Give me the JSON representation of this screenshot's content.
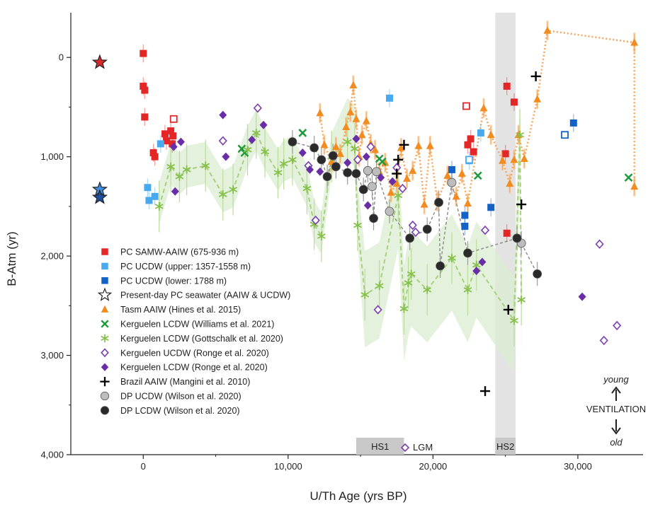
{
  "chart_data": {
    "type": "scatter",
    "xlabel": "U/Th Age (yrs BP)",
    "ylabel": "B-Atm (yr)",
    "xlim": [
      -5000,
      34500
    ],
    "ylim": [
      4000,
      -450
    ],
    "y_inverted": true,
    "x_ticks": [
      0,
      10000,
      20000,
      30000
    ],
    "x_tick_labels": [
      "0",
      "10,000",
      "20,000",
      "30,000"
    ],
    "y_ticks": [
      0,
      1000,
      2000,
      3000,
      4000
    ],
    "y_tick_labels": [
      "0",
      "1,000",
      "2,000",
      "3,000",
      "4,000"
    ],
    "grid": false,
    "legend_position": "lower-left",
    "shaded_bands": [
      {
        "label": "HS1",
        "x": [
          14700,
          18000
        ]
      },
      {
        "label": "HS2",
        "x": [
          24300,
          25700
        ]
      }
    ],
    "lgm_label": "LGM",
    "annotations": {
      "young": "young",
      "ventilation": "VENTILATION",
      "old": "old"
    },
    "series": [
      {
        "name": "PC SAMW-AAIW (675-936 m)",
        "marker": "square",
        "color": "#e32727",
        "points": [
          [
            0,
            -40
          ],
          [
            0,
            290
          ],
          [
            100,
            330
          ],
          [
            100,
            600
          ],
          [
            700,
            960
          ],
          [
            800,
            1000
          ],
          [
            1500,
            770
          ],
          [
            1600,
            840
          ],
          [
            1900,
            740
          ],
          [
            2000,
            870
          ],
          [
            2050,
            790
          ],
          [
            25000,
            970
          ],
          [
            25100,
            1770
          ],
          [
            25100,
            290
          ],
          [
            25600,
            450
          ],
          [
            22400,
            880
          ],
          [
            22600,
            820
          ],
          [
            22800,
            950
          ]
        ],
        "open_points": [
          [
            2100,
            620
          ],
          [
            22300,
            490
          ]
        ]
      },
      {
        "name": "PC UCDW (upper: 1357-1558 m)",
        "marker": "square",
        "color": "#49a9ee",
        "points": [
          [
            300,
            1310
          ],
          [
            400,
            1440
          ],
          [
            800,
            1400
          ],
          [
            1200,
            870
          ],
          [
            17000,
            410
          ],
          [
            22500,
            1040
          ],
          [
            23300,
            760
          ]
        ],
        "open_points": [
          [
            22500,
            1030
          ]
        ]
      },
      {
        "name": "PC UCDW (lower: 1788 m)",
        "marker": "square",
        "color": "#1562c7",
        "points": [
          [
            21300,
            1130
          ],
          [
            22200,
            1590
          ],
          [
            22200,
            1700
          ],
          [
            24000,
            1510
          ],
          [
            29700,
            660
          ]
        ],
        "open_points": [
          [
            29100,
            780
          ]
        ]
      },
      {
        "name": "Present-day PC seawater (AAIW & UCDW)",
        "marker": "star",
        "color": "#ffffff",
        "points": [
          [
            -3000,
            50
          ],
          [
            -3000,
            1330
          ],
          [
            -3000,
            1410
          ]
        ],
        "fills": [
          "#d62a2a",
          "#3f8de0",
          "#1c4f9c"
        ]
      },
      {
        "name": "Tasm AAIW (Hines et al. 2015)",
        "marker": "triangle",
        "color": "#f38c20",
        "points": [
          [
            12200,
            560
          ],
          [
            12500,
            880
          ],
          [
            13000,
            1050
          ],
          [
            13300,
            900
          ],
          [
            13600,
            970
          ],
          [
            14000,
            700
          ],
          [
            14300,
            550
          ],
          [
            14500,
            280
          ],
          [
            14700,
            620
          ],
          [
            14900,
            1000
          ],
          [
            15100,
            780
          ],
          [
            15400,
            640
          ],
          [
            15700,
            870
          ],
          [
            16000,
            930
          ],
          [
            16300,
            1150
          ],
          [
            16700,
            1060
          ],
          [
            17100,
            1360
          ],
          [
            17500,
            1270
          ],
          [
            17800,
            910
          ],
          [
            18200,
            1220
          ],
          [
            18600,
            1140
          ],
          [
            19000,
            890
          ],
          [
            19400,
            1480
          ],
          [
            19800,
            890
          ],
          [
            20300,
            1450
          ],
          [
            21000,
            1190
          ],
          [
            21600,
            1400
          ],
          [
            22000,
            1170
          ],
          [
            22400,
            1470
          ],
          [
            23500,
            510
          ],
          [
            24000,
            780
          ],
          [
            24800,
            1040
          ],
          [
            25300,
            1270
          ],
          [
            25600,
            1030
          ],
          [
            25900,
            780
          ],
          [
            26300,
            1020
          ],
          [
            27200,
            420
          ],
          [
            27900,
            -270
          ],
          [
            33900,
            -150
          ],
          [
            33900,
            1300
          ]
        ]
      },
      {
        "name": "Kerguelen LCDW (Williams et al. 2021)",
        "marker": "x",
        "color": "#1e9a3e",
        "points": [
          [
            6800,
            920
          ],
          [
            7000,
            960
          ],
          [
            11000,
            760
          ],
          [
            16300,
            1020
          ],
          [
            16500,
            1050
          ],
          [
            23100,
            1190
          ],
          [
            33500,
            1210
          ]
        ]
      },
      {
        "name": "Kerguelen LCDW (Gottschalk et al. 2020)",
        "marker": "asterisk",
        "color": "#86c04b",
        "points": [
          [
            1100,
            1500
          ],
          [
            1900,
            1100
          ],
          [
            2500,
            1200
          ],
          [
            3000,
            1130
          ],
          [
            4300,
            1090
          ],
          [
            5500,
            1380
          ],
          [
            6200,
            1330
          ],
          [
            7200,
            930
          ],
          [
            7800,
            760
          ],
          [
            8400,
            950
          ],
          [
            9300,
            1160
          ],
          [
            9700,
            1070
          ],
          [
            10300,
            1030
          ],
          [
            11300,
            1320
          ],
          [
            11800,
            1680
          ],
          [
            12300,
            1800
          ],
          [
            13000,
            1000
          ],
          [
            14100,
            850
          ],
          [
            14600,
            920
          ],
          [
            14800,
            1690
          ],
          [
            15300,
            2390
          ],
          [
            16300,
            2300
          ],
          [
            17600,
            1390
          ],
          [
            18000,
            2530
          ],
          [
            18300,
            2270
          ],
          [
            18500,
            2180
          ],
          [
            19600,
            2340
          ],
          [
            21300,
            2020
          ],
          [
            22400,
            2340
          ],
          [
            23000,
            2090
          ],
          [
            25600,
            2650
          ],
          [
            26100,
            2440
          ],
          [
            26000,
            780
          ]
        ]
      },
      {
        "name": "Kerguelen UCDW (Ronge et al. 2020)",
        "marker": "diamond-open",
        "color": "#7a3fb0",
        "points": [
          [
            5500,
            840
          ],
          [
            7900,
            510
          ],
          [
            11400,
            1090
          ],
          [
            11900,
            1640
          ],
          [
            14800,
            1030
          ],
          [
            15700,
            900
          ],
          [
            16200,
            2540
          ],
          [
            17500,
            1110
          ],
          [
            17900,
            1320
          ],
          [
            18600,
            1690
          ],
          [
            18800,
            1760
          ],
          [
            23600,
            1740
          ],
          [
            31500,
            1880
          ],
          [
            32700,
            2700
          ],
          [
            31800,
            2850
          ]
        ]
      },
      {
        "name": "Kerguelen LCDW (Ronge et al. 2020)",
        "marker": "diamond",
        "color": "#6a2da8",
        "points": [
          [
            2100,
            900
          ],
          [
            2200,
            1350
          ],
          [
            2600,
            850
          ],
          [
            5500,
            580
          ],
          [
            5700,
            1000
          ],
          [
            7500,
            830
          ],
          [
            8300,
            680
          ],
          [
            11000,
            960
          ],
          [
            11500,
            1130
          ],
          [
            12200,
            1150
          ],
          [
            14100,
            1060
          ],
          [
            14700,
            820
          ],
          [
            15400,
            1000
          ],
          [
            15500,
            1490
          ],
          [
            16400,
            1210
          ],
          [
            17200,
            1250
          ],
          [
            23000,
            2150
          ],
          [
            23400,
            2060
          ],
          [
            30300,
            2410
          ]
        ]
      },
      {
        "name": "Brazil AAIW (Mangini et al. 2010)",
        "marker": "cross",
        "color": "#000000",
        "points": [
          [
            17500,
            1170
          ],
          [
            17600,
            1030
          ],
          [
            18000,
            880
          ],
          [
            23600,
            3360
          ],
          [
            25200,
            2540
          ],
          [
            26100,
            1480
          ],
          [
            27100,
            190
          ]
        ]
      },
      {
        "name": "DP UCDW (Wilson et al. 2020)",
        "marker": "circle",
        "color": "#bdbdbd",
        "points": [
          [
            15500,
            1140
          ],
          [
            15800,
            1300
          ],
          [
            16100,
            1150
          ],
          [
            17000,
            1550
          ],
          [
            21300,
            1260
          ],
          [
            26100,
            1870
          ]
        ]
      },
      {
        "name": "DP LCDW (Wilson et al. 2020)",
        "marker": "circle",
        "color": "#2a2a2a",
        "points": [
          [
            10300,
            850
          ],
          [
            11800,
            910
          ],
          [
            12300,
            1030
          ],
          [
            12700,
            1200
          ],
          [
            13100,
            990
          ],
          [
            13300,
            1100
          ],
          [
            14100,
            1160
          ],
          [
            14700,
            1170
          ],
          [
            15200,
            1330
          ],
          [
            15900,
            1620
          ],
          [
            18400,
            1820
          ],
          [
            19600,
            1730
          ],
          [
            20400,
            1460
          ],
          [
            20500,
            2100
          ],
          [
            22400,
            1970
          ],
          [
            25800,
            1820
          ],
          [
            27200,
            2180
          ]
        ]
      }
    ]
  }
}
